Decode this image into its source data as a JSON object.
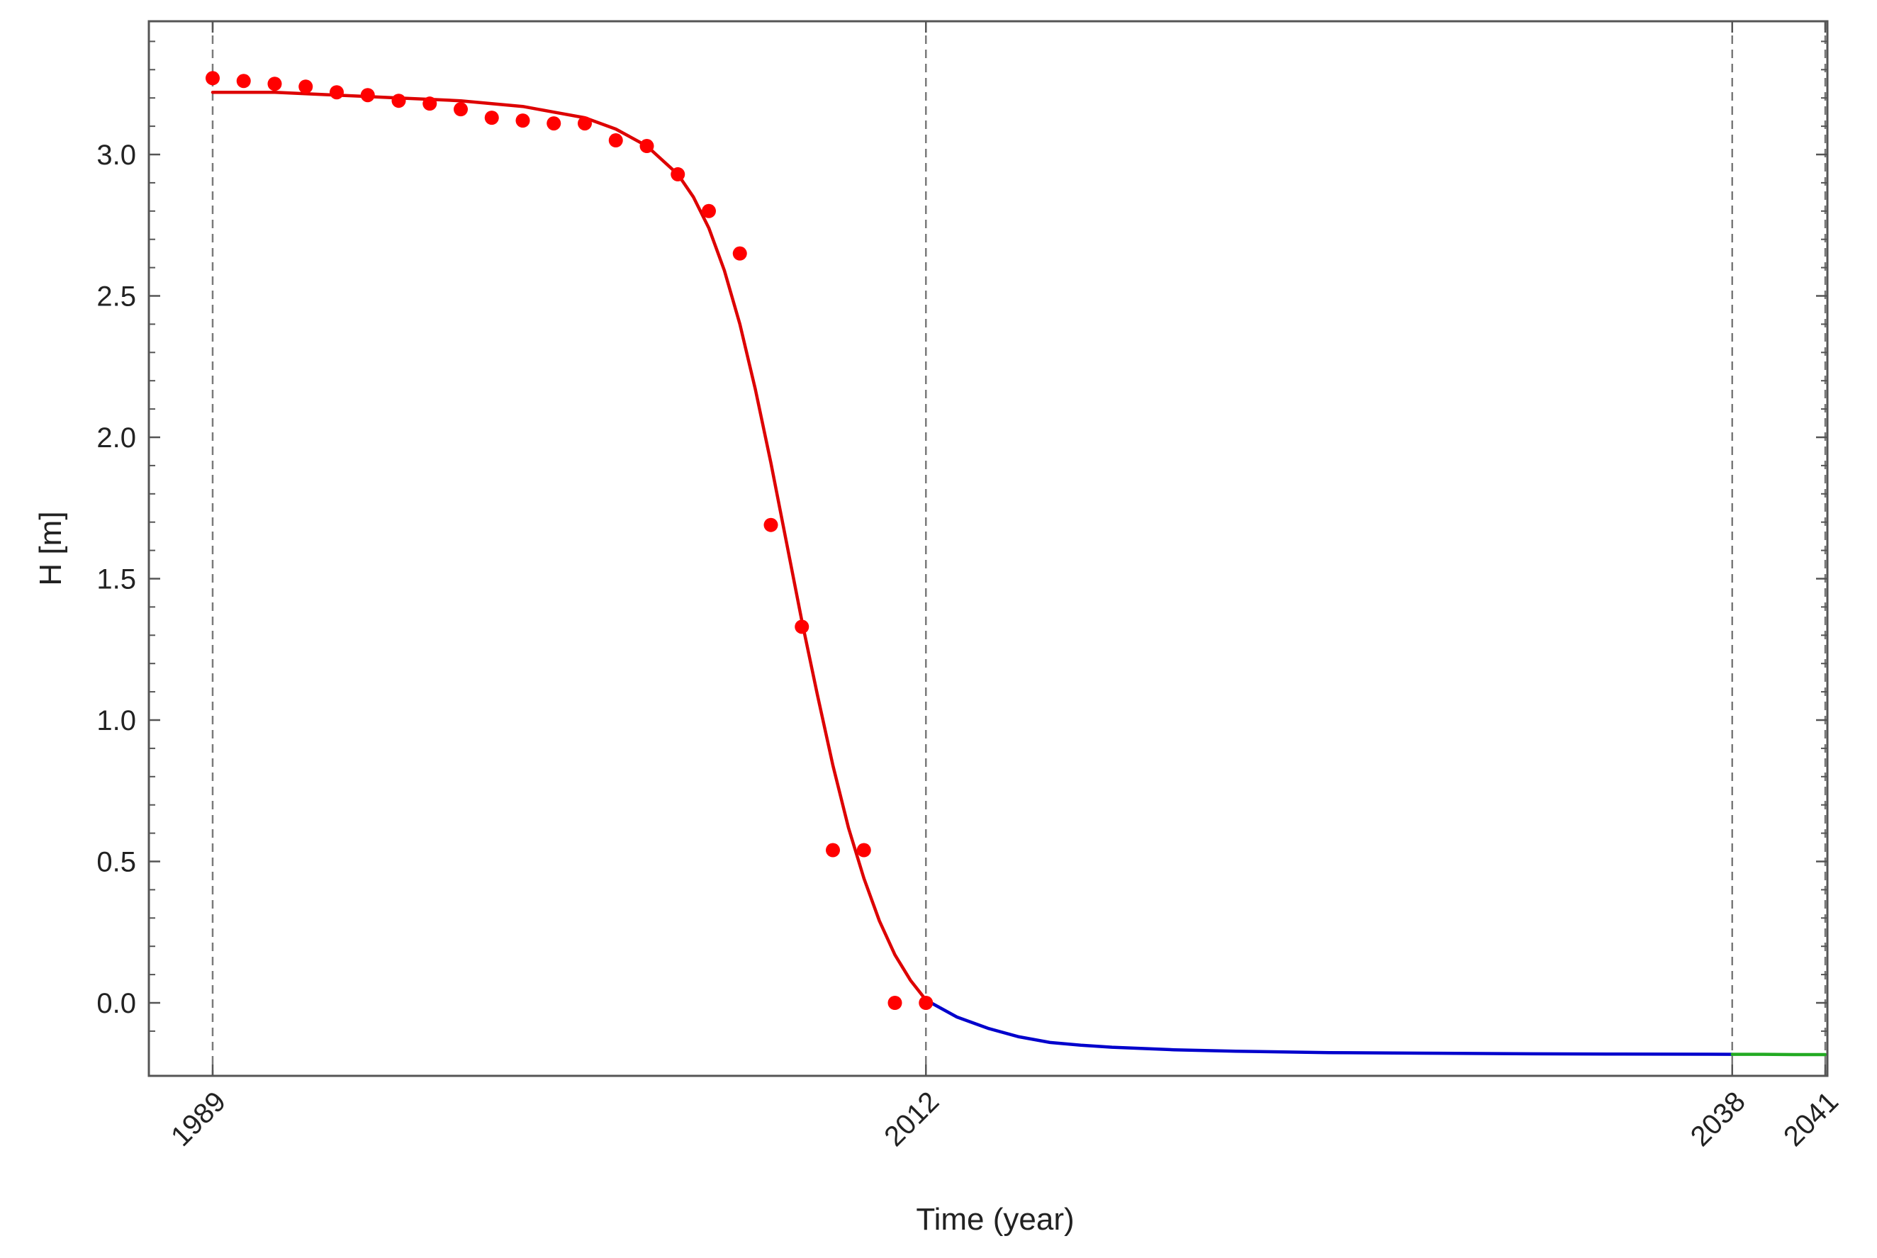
{
  "chart_data": {
    "type": "line",
    "title": "",
    "xlabel": "Time (year)",
    "ylabel": "H [m]",
    "xlim": [
      1987,
      2042
    ],
    "ylim": [
      -0.26,
      3.48
    ],
    "xticks": [
      1989,
      2012,
      2038,
      2041
    ],
    "yticks": [
      0.0,
      0.5,
      1.0,
      1.5,
      2.0,
      2.5,
      3.0
    ],
    "ytick_labels": [
      "0.0",
      "0.5",
      "1.0",
      "1.5",
      "2.0",
      "2.5",
      "3.0"
    ],
    "xtick_labels": [
      "1989",
      "2012",
      "2038",
      "2041"
    ],
    "vlines": [
      1989,
      2012,
      2038,
      2041
    ],
    "grid": false,
    "legend": "none",
    "colors": {
      "observed": "#ff0000",
      "fit": "#dd0000",
      "forecast": "#0000cc",
      "extension": "#22aa22",
      "vline": "#7a7a7a",
      "frame": "#555555"
    },
    "series": [
      {
        "role": "observed",
        "x": [
          1989,
          1990,
          1991,
          1992,
          1993,
          1994,
          1995,
          1996,
          1997,
          1998,
          1999,
          2000,
          2001,
          2002,
          2003,
          2004,
          2005,
          2006,
          2007,
          2008,
          2009,
          2010,
          2011,
          2012
        ],
        "y": [
          3.27,
          3.26,
          3.25,
          3.24,
          3.22,
          3.21,
          3.19,
          3.18,
          3.16,
          3.13,
          3.12,
          3.11,
          3.11,
          3.05,
          3.03,
          2.93,
          2.8,
          2.65,
          1.69,
          1.33,
          0.54,
          0.54,
          0.0,
          0.0
        ]
      },
      {
        "role": "fit",
        "x": [
          1989,
          1991,
          1993,
          1995,
          1997,
          1999,
          2000,
          2001,
          2002,
          2003,
          2004,
          2004.5,
          2005,
          2005.5,
          2006,
          2006.5,
          2007,
          2007.5,
          2008,
          2008.5,
          2009,
          2009.5,
          2010,
          2010.5,
          2011,
          2011.5,
          2012
        ],
        "y": [
          3.22,
          3.22,
          3.21,
          3.2,
          3.19,
          3.17,
          3.15,
          3.13,
          3.09,
          3.03,
          2.93,
          2.85,
          2.74,
          2.59,
          2.4,
          2.17,
          1.91,
          1.63,
          1.35,
          1.09,
          0.84,
          0.62,
          0.44,
          0.29,
          0.17,
          0.08,
          0.01
        ]
      },
      {
        "role": "forecast",
        "x": [
          2012,
          2013,
          2014,
          2015,
          2016,
          2017,
          2018,
          2020,
          2022,
          2025,
          2028,
          2031,
          2034,
          2038
        ],
        "y": [
          0.01,
          -0.05,
          -0.09,
          -0.12,
          -0.14,
          -0.15,
          -0.157,
          -0.166,
          -0.171,
          -0.176,
          -0.178,
          -0.18,
          -0.181,
          -0.182
        ]
      },
      {
        "role": "extension",
        "x": [
          2038,
          2039,
          2040,
          2041
        ],
        "y": [
          -0.182,
          -0.182,
          -0.183,
          -0.183
        ]
      }
    ]
  }
}
